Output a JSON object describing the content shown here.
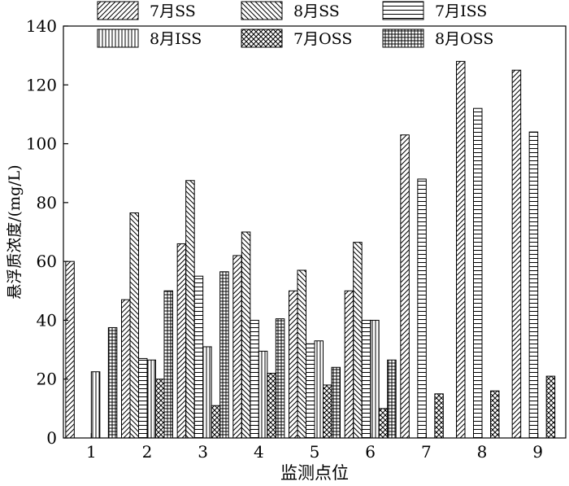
{
  "chart_data": {
    "type": "bar",
    "xlabel": "监测点位",
    "ylabel": "悬浮质浓度/(mg/L)",
    "categories": [
      "1",
      "2",
      "3",
      "4",
      "5",
      "6",
      "7",
      "8",
      "9"
    ],
    "ylim": [
      0,
      140
    ],
    "yticks": [
      0,
      20,
      40,
      60,
      80,
      100,
      120,
      140
    ],
    "legend_position": "top",
    "grid": false,
    "series": [
      {
        "name": "7月SS",
        "pattern": "diag-fwd",
        "values": [
          60,
          47,
          66,
          62,
          50,
          50,
          103,
          128,
          125
        ]
      },
      {
        "name": "8月SS",
        "pattern": "diag-back",
        "values": [
          null,
          76.5,
          87.5,
          70,
          57,
          66.5,
          null,
          null,
          null
        ]
      },
      {
        "name": "7月ISS",
        "pattern": "horizontal",
        "values": [
          null,
          27,
          55,
          40,
          32,
          40,
          88,
          112,
          104
        ]
      },
      {
        "name": "8月ISS",
        "pattern": "vertical",
        "values": [
          22.5,
          26.5,
          31,
          29.5,
          33,
          40,
          null,
          null,
          null
        ]
      },
      {
        "name": "7月OSS",
        "pattern": "cross-diag",
        "values": [
          null,
          20,
          11,
          22,
          18,
          10,
          15,
          16,
          21
        ]
      },
      {
        "name": "8月OSS",
        "pattern": "grid",
        "values": [
          37.5,
          50,
          56.5,
          40.5,
          24,
          26.5,
          null,
          null,
          null
        ]
      }
    ]
  }
}
